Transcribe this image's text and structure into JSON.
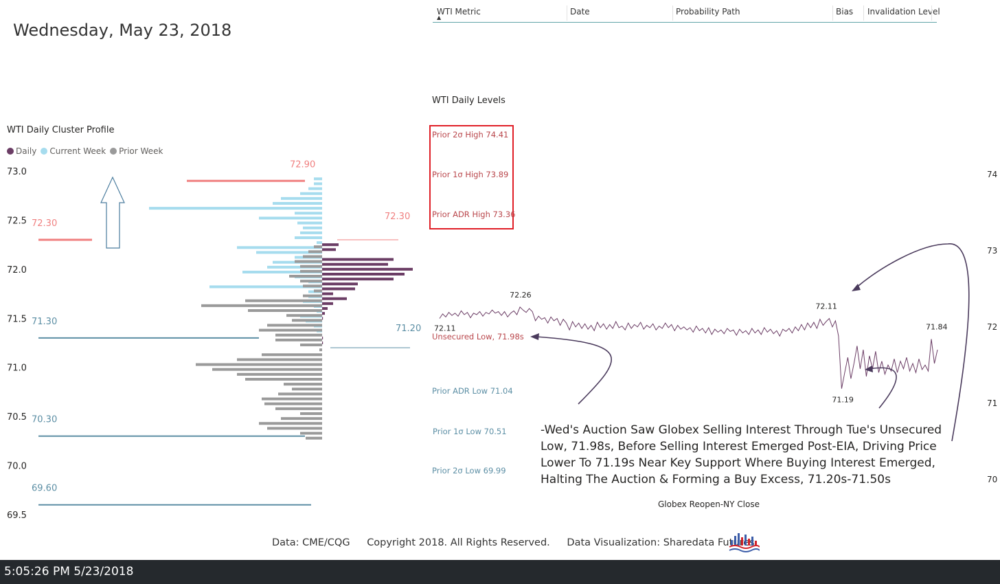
{
  "date_title": "Wednesday, May 23, 2018",
  "header": {
    "columns": [
      "WTI Metric",
      "Date",
      "Probability Path",
      "Bias",
      "Invalidation Level"
    ]
  },
  "cluster_profile": {
    "title": "WTI Daily Cluster Profile",
    "legend": [
      {
        "label": "Daily",
        "color": "#6b3d65"
      },
      {
        "label": "Current Week",
        "color": "#a6dcee"
      },
      {
        "label": "Prior Week",
        "color": "#9a9a9a"
      }
    ]
  },
  "levels": {
    "title": "WTI Daily Levels",
    "upper": [
      {
        "label": "Prior 2σ High 74.41"
      },
      {
        "label": "Prior 1σ High 73.89"
      },
      {
        "label": "Prior ADR High 73.36"
      }
    ],
    "unsecured": "Unsecured Low, 71.98s",
    "lower": [
      {
        "label": "Prior ADR Low 71.04"
      },
      {
        "label": "Prior 1σ Low 70.51"
      },
      {
        "label": "Prior 2σ Low 69.99"
      }
    ]
  },
  "commentary": "-Wed's Auction Saw Globex Selling Interest Through Tue's Unsecured Low, 71.98s, Before Selling Interest Emerged Post-EIA, Driving Price Lower To 71.19s Near Key Support Where Buying Interest Emerged, Halting The Auction & Forming a Buy Excess, 71.20s-71.50s",
  "x_axis_label": "Globex Reopen-NY Close",
  "footer": {
    "data": "Data: CME/CQG",
    "copyright": "Copyright 2018. All Rights Reserved.",
    "viz": "Data Visualization: Sharedata Futures"
  },
  "status_time": "5:05:26 PM 5/23/2018",
  "chart_data": [
    {
      "type": "bar",
      "orientation": "horizontal",
      "title": "WTI Daily Cluster Profile",
      "ylim": [
        69.5,
        73.0
      ],
      "y_ticks": [
        "73.0",
        "72.5",
        "72.0",
        "71.5",
        "71.0",
        "70.5",
        "70.0",
        "69.5"
      ],
      "series": [
        {
          "name": "Daily",
          "color": "#6b3d65",
          "prices": [
            72.3,
            72.25,
            72.2,
            72.15,
            72.1,
            72.05,
            72.0,
            71.95,
            71.9,
            71.85,
            71.8,
            71.75,
            71.7,
            71.65,
            71.6,
            71.55,
            71.5,
            71.45,
            71.4,
            71.35,
            71.3,
            71.25
          ],
          "values": [
            0,
            0.06,
            0.05,
            0,
            0.26,
            0.24,
            0.33,
            0.3,
            0.26,
            0.13,
            0.12,
            0.04,
            0.09,
            0.04,
            0.02,
            0.01,
            0.003,
            0,
            0,
            0,
            0.003,
            0.003
          ]
        },
        {
          "name": "Current Week",
          "color": "#a6dcee",
          "prices": [
            72.9,
            72.85,
            72.8,
            72.75,
            72.7,
            72.65,
            72.6,
            72.55,
            72.5,
            72.45,
            72.4,
            72.35,
            72.3,
            72.25,
            72.2,
            72.15,
            72.1,
            72.05,
            72.0,
            71.95,
            71.9,
            71.85,
            71.8,
            71.75,
            71.7,
            71.65,
            71.6,
            71.55,
            71.5,
            71.45,
            71.4,
            71.35
          ],
          "values": [
            0.03,
            0.03,
            0.05,
            0.08,
            0.15,
            0.18,
            0.63,
            0.1,
            0.23,
            0.09,
            0.07,
            0.08,
            0.1,
            0.02,
            0.31,
            0.24,
            0.1,
            0.18,
            0.2,
            0.29,
            0.1,
            0.05,
            0.41,
            0.05,
            0.05,
            0.07,
            0.03,
            0.02,
            0.08,
            0.06,
            0.03,
            0.02
          ]
        },
        {
          "name": "Prior Week",
          "color": "#9a9a9a",
          "prices": [
            72.25,
            72.2,
            72.15,
            72.1,
            72.05,
            72.0,
            71.95,
            71.9,
            71.85,
            71.8,
            71.75,
            71.7,
            71.65,
            71.6,
            71.55,
            71.5,
            71.45,
            71.4,
            71.35,
            71.3,
            71.25,
            71.2,
            71.15,
            71.1,
            71.05,
            71.0,
            70.95,
            70.9,
            70.85,
            70.8,
            70.75,
            70.7,
            70.65,
            70.6,
            70.55,
            70.5,
            70.45,
            70.4,
            70.35,
            70.3
          ],
          "values": [
            0.03,
            0.05,
            0.07,
            0.1,
            0.08,
            0.08,
            0.12,
            0.08,
            0.07,
            0.03,
            0.07,
            0.28,
            0.44,
            0.27,
            0.13,
            0.11,
            0.2,
            0.23,
            0.17,
            0.17,
            0.08,
            0.01,
            0.22,
            0.31,
            0.46,
            0.4,
            0.31,
            0.28,
            0.14,
            0.11,
            0.16,
            0.22,
            0.21,
            0.17,
            0.08,
            0.15,
            0.23,
            0.2,
            0.08,
            0.06
          ]
        }
      ],
      "annotations": [
        {
          "label": "72.90",
          "price": 72.9,
          "color": "#f08080"
        },
        {
          "label": "72.30",
          "price": 72.3,
          "color": "#f08080"
        },
        {
          "label": "72.30",
          "price": 72.3,
          "color": "#f08080"
        },
        {
          "label": "71.30",
          "price": 71.3,
          "color": "#5b8ea4"
        },
        {
          "label": "71.20",
          "price": 71.2,
          "color": "#5b8ea4"
        },
        {
          "label": "70.30",
          "price": 70.3,
          "color": "#5b8ea4"
        },
        {
          "label": "69.60",
          "price": 69.6,
          "color": "#5b8ea4"
        }
      ]
    },
    {
      "type": "line",
      "x_label": "Globex Reopen-NY Close",
      "y_ticks": [
        "74",
        "73",
        "72",
        "71",
        "70"
      ],
      "ylim": [
        69.6,
        74.25
      ],
      "color": "#6b3d65",
      "values": [
        72.11,
        72.17,
        72.13,
        72.19,
        72.15,
        72.18,
        72.14,
        72.21,
        72.16,
        72.19,
        72.12,
        72.18,
        72.16,
        72.2,
        72.14,
        72.19,
        72.17,
        72.22,
        72.18,
        72.2,
        72.15,
        72.2,
        72.13,
        72.18,
        72.21,
        72.16,
        72.26,
        72.22,
        72.19,
        72.24,
        72.2,
        72.08,
        72.14,
        72.1,
        72.12,
        72.05,
        72.13,
        72.08,
        72.11,
        72.02,
        72.1,
        72.05,
        71.96,
        72.07,
        72.0,
        72.05,
        71.98,
        72.04,
        71.97,
        72.02,
        71.95,
        72.06,
        71.99,
        72.04,
        71.97,
        72.03,
        71.98,
        72.07,
        71.99,
        72.01,
        71.96,
        72.05,
        71.98,
        72.03,
        72.0,
        72.06,
        71.97,
        72.02,
        71.99,
        72.04,
        71.96,
        72.01,
        71.98,
        72.05,
        71.99,
        72.03,
        71.95,
        72.02,
        71.97,
        72.0,
        71.96,
        71.99,
        71.93,
        72.01,
        71.95,
        71.98,
        71.92,
        71.99,
        71.9,
        71.97,
        71.93,
        71.96,
        71.91,
        71.98,
        71.94,
        71.96,
        71.89,
        71.97,
        71.92,
        71.95,
        71.9,
        71.98,
        71.92,
        71.96,
        71.9,
        71.99,
        71.93,
        71.97,
        71.91,
        71.95,
        71.88,
        71.97,
        71.94,
        71.98,
        71.92,
        72.0,
        71.95,
        72.03,
        71.96,
        72.05,
        71.99,
        72.06,
        71.98,
        72.1,
        72.02,
        72.07,
        72.11,
        72.0,
        72.08,
        71.88,
        71.19,
        71.4,
        71.6,
        71.32,
        71.52,
        71.75,
        71.45,
        71.7,
        71.35,
        71.62,
        71.45,
        71.68,
        71.4,
        71.55,
        71.38,
        71.5,
        71.42,
        71.58,
        71.4,
        71.55,
        71.45,
        71.6,
        71.42,
        71.52,
        71.4,
        71.58,
        71.44,
        71.5,
        71.42,
        71.84,
        71.52,
        71.7
      ]
    }
  ]
}
